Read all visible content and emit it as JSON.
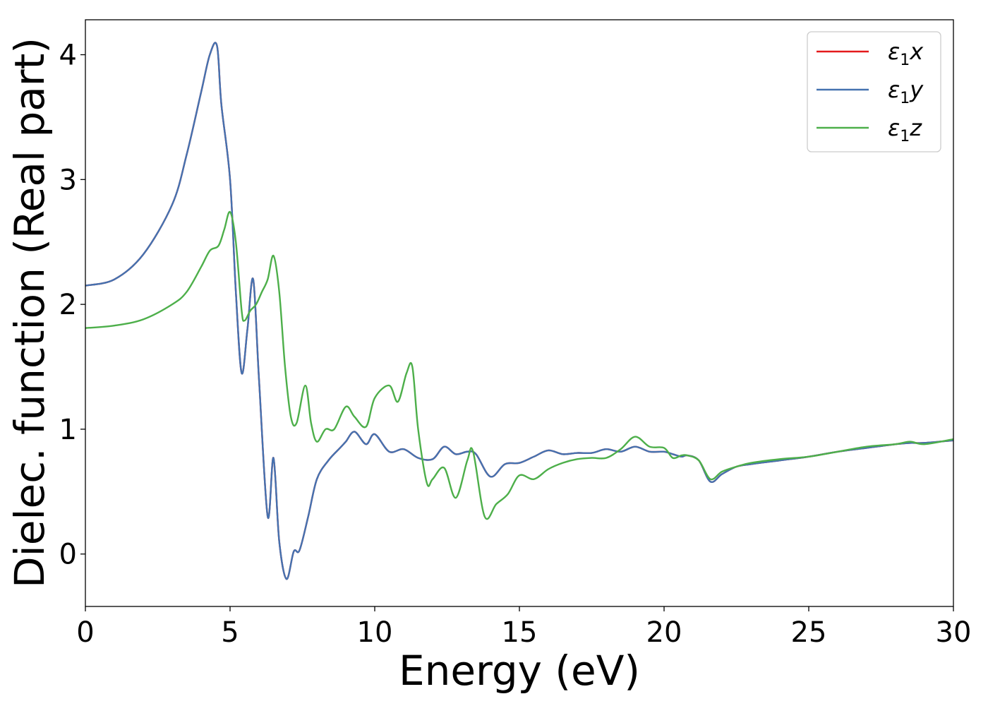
{
  "chart_data": {
    "type": "line",
    "title": "",
    "xlabel": "Energy (eV)",
    "ylabel": "Dielec. function (Real part)",
    "xlim": [
      0,
      30
    ],
    "ylim": [
      -0.42,
      4.28
    ],
    "xticks": [
      0,
      5,
      10,
      15,
      20,
      25,
      30
    ],
    "yticks": [
      0,
      1,
      2,
      3,
      4
    ],
    "grid": false,
    "legend_position": "top-right",
    "series": [
      {
        "name": "ε₁x",
        "legend": {
          "base": "ε",
          "sub": "1",
          "var": "x"
        },
        "color": "#e41a1c",
        "x": [
          0,
          1,
          2,
          3,
          3.5,
          4,
          4.3,
          4.55,
          4.7,
          5.0,
          5.2,
          5.4,
          5.6,
          5.8,
          6.0,
          6.3,
          6.5,
          6.7,
          6.95,
          7.2,
          7.4,
          7.7,
          8.0,
          8.4,
          8.8,
          9.0,
          9.3,
          9.7,
          10.0,
          10.5,
          11.0,
          11.5,
          12.0,
          12.4,
          12.8,
          13.2,
          13.5,
          14.0,
          14.5,
          15.0,
          15.5,
          16.0,
          16.5,
          17.0,
          17.5,
          18.0,
          18.5,
          19.0,
          19.5,
          20.0,
          20.3,
          20.6,
          20.8,
          21.2,
          21.6,
          22.0,
          22.5,
          23.0,
          24.0,
          25.0,
          26.0,
          27.0,
          28.0,
          28.5,
          29.0,
          30.0
        ],
        "y": [
          2.15,
          2.2,
          2.4,
          2.8,
          3.2,
          3.7,
          4.0,
          4.07,
          3.6,
          3.0,
          2.1,
          1.45,
          1.8,
          2.2,
          1.4,
          0.3,
          0.77,
          0.1,
          -0.2,
          0.02,
          0.03,
          0.3,
          0.6,
          0.75,
          0.85,
          0.9,
          0.98,
          0.88,
          0.96,
          0.82,
          0.84,
          0.77,
          0.76,
          0.86,
          0.8,
          0.82,
          0.8,
          0.62,
          0.72,
          0.73,
          0.78,
          0.83,
          0.8,
          0.81,
          0.81,
          0.84,
          0.82,
          0.86,
          0.82,
          0.82,
          0.8,
          0.78,
          0.79,
          0.75,
          0.58,
          0.64,
          0.7,
          0.72,
          0.75,
          0.78,
          0.82,
          0.85,
          0.88,
          0.89,
          0.89,
          0.91
        ]
      },
      {
        "name": "ε₁y",
        "legend": {
          "base": "ε",
          "sub": "1",
          "var": "y"
        },
        "color": "#4472b0",
        "x": [
          0,
          1,
          2,
          3,
          3.5,
          4,
          4.3,
          4.55,
          4.7,
          5.0,
          5.2,
          5.4,
          5.6,
          5.8,
          6.0,
          6.3,
          6.5,
          6.7,
          6.95,
          7.2,
          7.4,
          7.7,
          8.0,
          8.4,
          8.8,
          9.0,
          9.3,
          9.7,
          10.0,
          10.5,
          11.0,
          11.5,
          12.0,
          12.4,
          12.8,
          13.2,
          13.5,
          14.0,
          14.5,
          15.0,
          15.5,
          16.0,
          16.5,
          17.0,
          17.5,
          18.0,
          18.5,
          19.0,
          19.5,
          20.0,
          20.3,
          20.6,
          20.8,
          21.2,
          21.6,
          22.0,
          22.5,
          23.0,
          24.0,
          25.0,
          26.0,
          27.0,
          28.0,
          28.5,
          29.0,
          30.0
        ],
        "y": [
          2.15,
          2.2,
          2.4,
          2.8,
          3.2,
          3.7,
          4.0,
          4.07,
          3.6,
          3.0,
          2.1,
          1.45,
          1.8,
          2.2,
          1.4,
          0.3,
          0.77,
          0.1,
          -0.2,
          0.02,
          0.03,
          0.3,
          0.6,
          0.75,
          0.85,
          0.9,
          0.98,
          0.88,
          0.96,
          0.82,
          0.84,
          0.77,
          0.76,
          0.86,
          0.8,
          0.82,
          0.8,
          0.62,
          0.72,
          0.73,
          0.78,
          0.83,
          0.8,
          0.81,
          0.81,
          0.84,
          0.82,
          0.86,
          0.82,
          0.82,
          0.8,
          0.78,
          0.79,
          0.75,
          0.58,
          0.64,
          0.7,
          0.72,
          0.75,
          0.78,
          0.82,
          0.85,
          0.88,
          0.89,
          0.89,
          0.91
        ]
      },
      {
        "name": "ε₁z",
        "legend": {
          "base": "ε",
          "sub": "1",
          "var": "z"
        },
        "color": "#4daf4a",
        "x": [
          0,
          1,
          2,
          3,
          3.5,
          4,
          4.3,
          4.6,
          4.8,
          5.0,
          5.2,
          5.4,
          5.5,
          5.7,
          5.9,
          6.1,
          6.3,
          6.5,
          6.7,
          6.9,
          7.1,
          7.3,
          7.6,
          7.8,
          8.0,
          8.3,
          8.6,
          9.0,
          9.3,
          9.7,
          10.0,
          10.5,
          10.8,
          11.1,
          11.3,
          11.5,
          11.8,
          12.0,
          12.4,
          12.8,
          13.2,
          13.4,
          13.8,
          14.2,
          14.6,
          15.0,
          15.5,
          16.0,
          16.5,
          17.0,
          17.5,
          18.0,
          18.5,
          19.0,
          19.5,
          20.0,
          20.3,
          20.6,
          20.8,
          21.2,
          21.6,
          22.0,
          22.5,
          23.0,
          24.0,
          25.0,
          26.0,
          27.0,
          28.0,
          28.5,
          29.0,
          30.0
        ],
        "y": [
          1.81,
          1.83,
          1.88,
          2.0,
          2.1,
          2.3,
          2.43,
          2.47,
          2.6,
          2.74,
          2.5,
          1.95,
          1.87,
          1.95,
          2.0,
          2.1,
          2.2,
          2.39,
          2.1,
          1.5,
          1.1,
          1.05,
          1.35,
          1.05,
          0.9,
          1.0,
          1.0,
          1.18,
          1.1,
          1.02,
          1.25,
          1.35,
          1.22,
          1.45,
          1.5,
          1.0,
          0.57,
          0.6,
          0.69,
          0.45,
          0.75,
          0.82,
          0.3,
          0.4,
          0.48,
          0.63,
          0.6,
          0.68,
          0.73,
          0.76,
          0.77,
          0.77,
          0.84,
          0.94,
          0.86,
          0.85,
          0.77,
          0.79,
          0.79,
          0.75,
          0.6,
          0.66,
          0.7,
          0.73,
          0.76,
          0.78,
          0.82,
          0.86,
          0.88,
          0.9,
          0.88,
          0.92
        ]
      }
    ]
  }
}
